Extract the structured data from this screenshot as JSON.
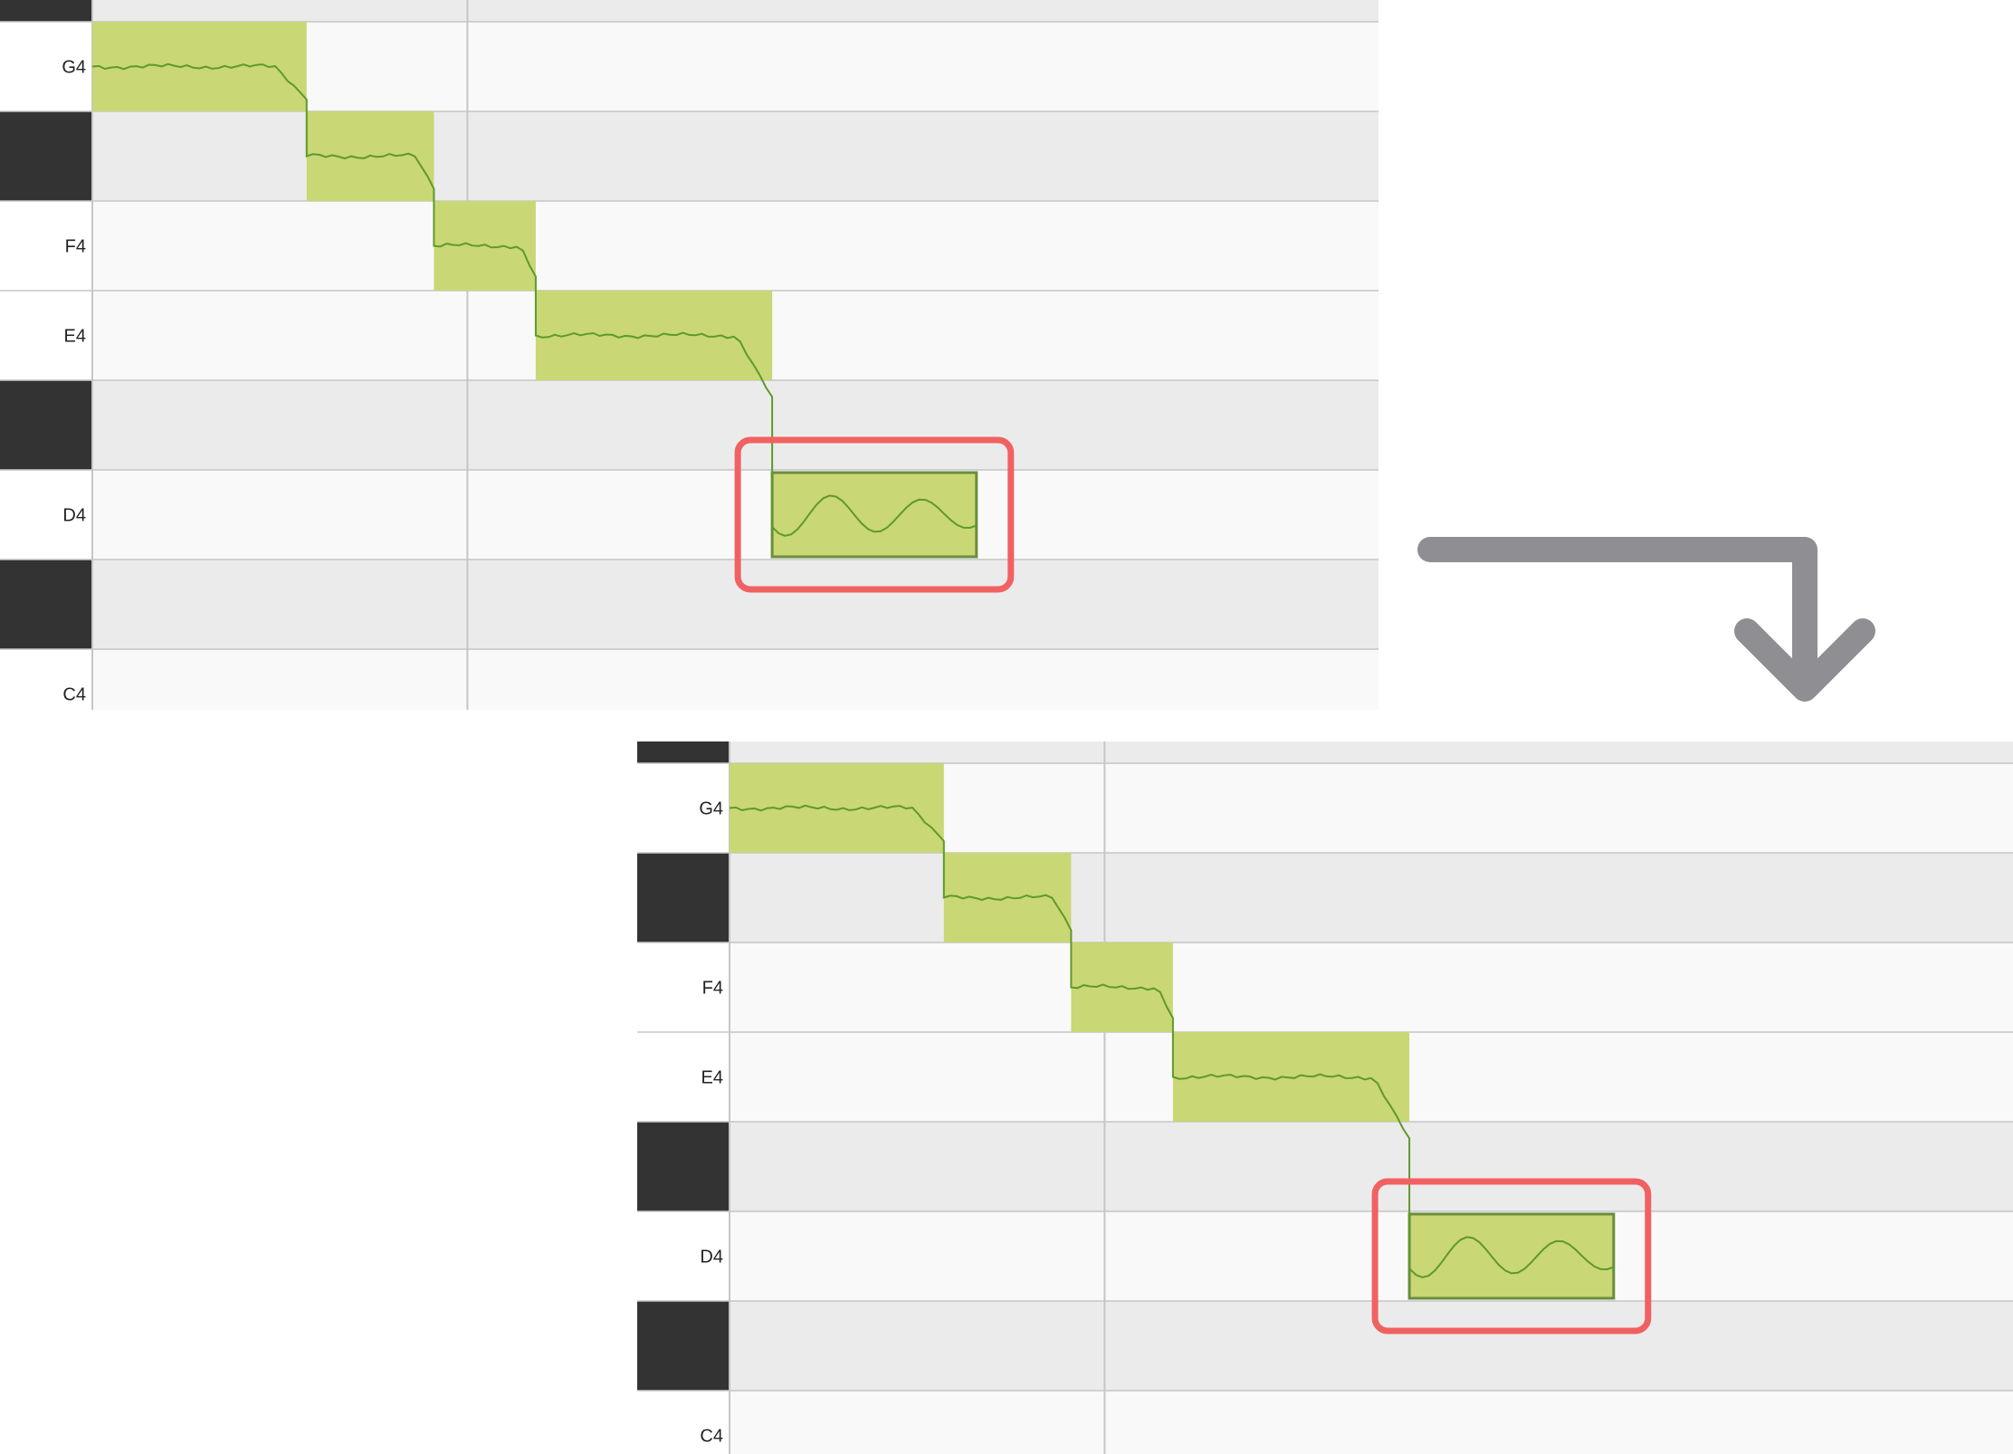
{
  "colors": {
    "note_fill": "#c9d775",
    "pitch_curve": "#5e9a2a",
    "selection_border": "#6a8d3a",
    "highlight_box": "#f16161",
    "white_row": "#f9f9f9",
    "black_row": "#ebebeb",
    "black_key": "#333333",
    "grid_line": "#c6c6c6",
    "arrow": "#8e8e93"
  },
  "keyboard": {
    "rows": [
      {
        "type": "black",
        "label": ""
      },
      {
        "type": "white",
        "label": "G4"
      },
      {
        "type": "black",
        "label": ""
      },
      {
        "type": "white",
        "label": "F4"
      },
      {
        "type": "white",
        "label": "E4"
      },
      {
        "type": "black",
        "label": ""
      },
      {
        "type": "white",
        "label": "D4"
      },
      {
        "type": "black",
        "label": ""
      },
      {
        "type": "white",
        "label": "C4"
      }
    ]
  },
  "notes": [
    {
      "pitch": "G4",
      "start": 0.0,
      "length": 0.32,
      "selected": false
    },
    {
      "pitch": "F#4",
      "start": 0.32,
      "length": 0.19,
      "selected": false
    },
    {
      "pitch": "F4",
      "start": 0.51,
      "length": 0.152,
      "selected": false
    },
    {
      "pitch": "E4",
      "start": 0.662,
      "length": 0.353,
      "selected": false
    },
    {
      "pitch": "D4",
      "start": 1.015,
      "length": 0.305,
      "selected": true
    }
  ],
  "icons": {
    "flow_arrow": "corner-down-arrow-icon"
  }
}
